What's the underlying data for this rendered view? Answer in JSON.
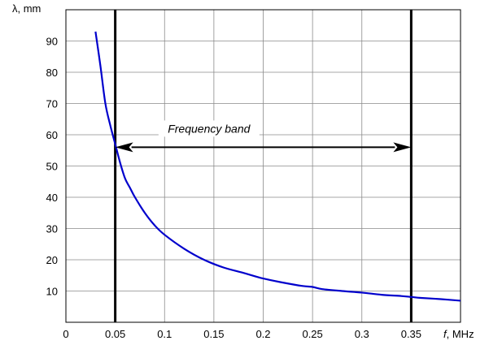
{
  "chart_data": {
    "type": "line",
    "ylabel": "λ, mm",
    "xlabel_var": "f",
    "xlabel_unit": ", MHz",
    "xlim": [
      0,
      0.4
    ],
    "ylim": [
      0,
      100
    ],
    "x_ticks": [
      0,
      0.05,
      0.1,
      0.15,
      0.2,
      0.25,
      0.3,
      0.35
    ],
    "x_tick_labels": [
      "0",
      "0.05",
      "0.1",
      "0.15",
      "0.2",
      "0.25",
      "0.3",
      "0.35"
    ],
    "y_ticks": [
      10,
      20,
      30,
      40,
      50,
      60,
      70,
      80,
      90
    ],
    "y_tick_labels": [
      "10",
      "20",
      "30",
      "40",
      "50",
      "60",
      "70",
      "80",
      "90"
    ],
    "grid": true,
    "series": [
      {
        "color": "#0000cc",
        "x": [
          0.03,
          0.035,
          0.04,
          0.045,
          0.05,
          0.055,
          0.06,
          0.065,
          0.07,
          0.08,
          0.09,
          0.1,
          0.12,
          0.14,
          0.16,
          0.18,
          0.2,
          0.22,
          0.24,
          0.25,
          0.26,
          0.28,
          0.3,
          0.32,
          0.34,
          0.35,
          0.36,
          0.38,
          0.4
        ],
        "y": [
          93,
          82,
          70,
          63,
          57,
          51,
          46,
          43,
          40,
          35,
          31,
          28,
          23.5,
          20,
          17.5,
          15.8,
          14,
          12.7,
          11.6,
          11.3,
          10.6,
          10,
          9.5,
          8.8,
          8.4,
          8.1,
          7.8,
          7.4,
          6.9
        ]
      }
    ],
    "vertical_lines": [
      0.05,
      0.35
    ],
    "annotation": {
      "text": "Frequency band",
      "from_x": 0.05,
      "to_x": 0.35,
      "y": 56
    }
  }
}
